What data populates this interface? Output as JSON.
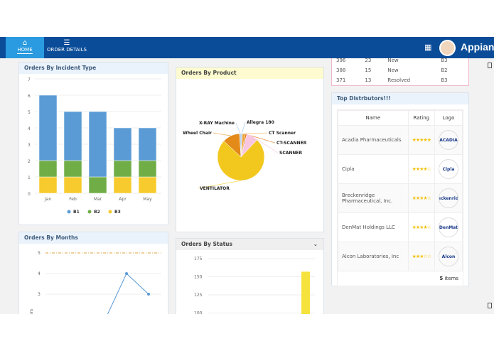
{
  "nav": {
    "tabs": [
      {
        "label": "HOME",
        "icon": "home-icon",
        "active": true
      },
      {
        "label": "ORDER DETAILS",
        "icon": "list-icon",
        "active": false
      }
    ],
    "brand": "Appian",
    "apps_icon": "grid-icon"
  },
  "top_table": {
    "rows": [
      [
        "396",
        "23",
        "New",
        "B3"
      ],
      [
        "388",
        "15",
        "New",
        "B2"
      ],
      [
        "371",
        "13",
        "Resolved",
        "B3"
      ]
    ]
  },
  "incident": {
    "title": "Orders By Incident Type"
  },
  "product": {
    "title": "Orders By Product"
  },
  "months": {
    "title": "Orders By Months"
  },
  "status": {
    "title": "Orders By Status"
  },
  "distributors": {
    "title": "Top Distrbutors!!!",
    "headers": [
      "Name",
      "Rating",
      "Logo"
    ],
    "rows": [
      {
        "name": "Acadia Pharmaceuticals",
        "rating": 5,
        "logo": "ACADIA"
      },
      {
        "name": "Cipla",
        "rating": 4,
        "logo": "Cipla"
      },
      {
        "name": "Breckenridge Pharmaceutical, Inc.",
        "rating": 4,
        "logo": "Breckenridge"
      },
      {
        "name": "DenMat Holdings LLC",
        "rating": 4,
        "logo": "DenMat"
      },
      {
        "name": "Alcon Laboratories, Inc",
        "rating": 3,
        "logo": "Alcon"
      }
    ],
    "count": "5",
    "count_label": "items"
  },
  "chart_data": [
    {
      "type": "bar",
      "title": "Orders By Incident Type",
      "stacked": true,
      "categories": [
        "Jan",
        "Feb",
        "Mar",
        "Apr",
        "May"
      ],
      "ylim": [
        0,
        7
      ],
      "yticks": [
        0,
        1,
        2,
        3,
        4,
        5,
        6,
        7
      ],
      "legend": "bottom",
      "series": [
        {
          "name": "B1",
          "color": "#5b9bd5",
          "values": [
            4,
            3,
            4,
            2,
            2
          ]
        },
        {
          "name": "B2",
          "color": "#70ad47",
          "values": [
            1,
            1,
            1,
            1,
            1
          ]
        },
        {
          "name": "B3",
          "color": "#f7cb2d",
          "values": [
            1,
            1,
            0,
            1,
            1
          ]
        }
      ]
    },
    {
      "type": "pie",
      "title": "Orders By Product",
      "labels": [
        "Allegra 180",
        "CT Scanner",
        "CT-SCANNER",
        "SCANNER",
        "VENTILATOR",
        "Wheel Chair",
        "X-RAY Machine"
      ],
      "values": [
        1,
        2,
        1,
        8,
        75,
        12,
        1
      ],
      "colors": [
        "#9ec5e8",
        "#f2a53a",
        "#e07b1f",
        "#f9c6e0",
        "#f2c81e",
        "#e38a19",
        "#a9c7e6"
      ]
    },
    {
      "type": "line",
      "title": "Orders By Months",
      "ylabel": "Orders",
      "yticks": [
        3,
        4,
        5
      ],
      "target": 5,
      "values": [
        1.7,
        4,
        3
      ]
    },
    {
      "type": "bar",
      "title": "Orders By Status",
      "yticks": [
        100,
        125,
        150,
        175
      ],
      "values": [
        157
      ],
      "color": "#f5e23d"
    }
  ]
}
